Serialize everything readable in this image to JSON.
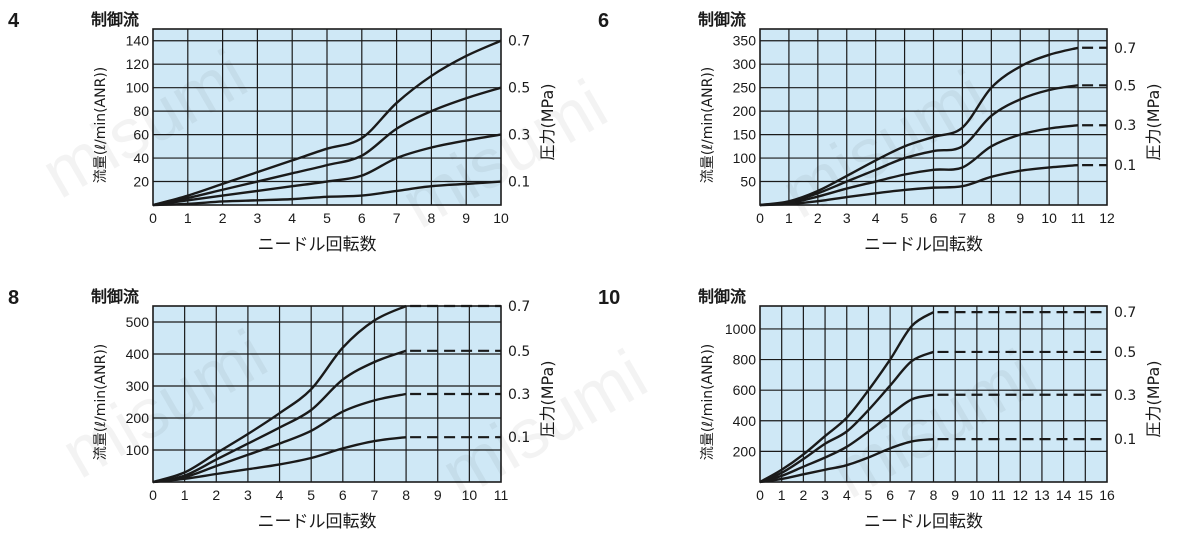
{
  "watermark": "misumi",
  "chart_data": [
    {
      "type": "line",
      "panel_label": "4",
      "top_label": "制御流",
      "xlabel": "ニードル回転数",
      "ylabel": "流量(ℓ/min(ANR))",
      "right_label": "圧力(MPa)",
      "xlim": [
        0,
        10
      ],
      "ylim": [
        0,
        150
      ],
      "x_ticks": [
        0,
        1,
        2,
        3,
        4,
        5,
        6,
        7,
        8,
        9,
        10
      ],
      "y_ticks": [
        20,
        40,
        60,
        80,
        100,
        120,
        140
      ],
      "series": [
        {
          "name": "0.7",
          "points": [
            [
              0,
              0
            ],
            [
              1,
              8
            ],
            [
              2,
              18
            ],
            [
              3,
              28
            ],
            [
              4,
              38
            ],
            [
              5,
              48
            ],
            [
              6,
              57
            ],
            [
              7,
              87
            ],
            [
              8,
              110
            ],
            [
              9,
              127
            ],
            [
              10,
              140
            ]
          ],
          "dashed_from": null
        },
        {
          "name": "0.5",
          "points": [
            [
              0,
              0
            ],
            [
              1,
              6
            ],
            [
              2,
              13
            ],
            [
              3,
              20
            ],
            [
              4,
              27
            ],
            [
              5,
              34
            ],
            [
              6,
              42
            ],
            [
              7,
              65
            ],
            [
              8,
              80
            ],
            [
              9,
              91
            ],
            [
              10,
              100
            ]
          ],
          "dashed_from": null
        },
        {
          "name": "0.3",
          "points": [
            [
              0,
              0
            ],
            [
              1,
              4
            ],
            [
              2,
              8
            ],
            [
              3,
              12
            ],
            [
              4,
              16
            ],
            [
              5,
              20
            ],
            [
              6,
              25
            ],
            [
              7,
              40
            ],
            [
              8,
              49
            ],
            [
              9,
              55
            ],
            [
              10,
              60
            ]
          ],
          "dashed_from": null
        },
        {
          "name": "0.1",
          "points": [
            [
              0,
              0
            ],
            [
              1,
              1
            ],
            [
              2,
              3
            ],
            [
              3,
              4
            ],
            [
              4,
              5
            ],
            [
              5,
              7
            ],
            [
              6,
              8
            ],
            [
              7,
              12
            ],
            [
              8,
              16
            ],
            [
              9,
              18
            ],
            [
              10,
              20
            ]
          ],
          "dashed_from": null
        }
      ]
    },
    {
      "type": "line",
      "panel_label": "6",
      "top_label": "制御流",
      "xlabel": "ニードル回転数",
      "ylabel": "流量(ℓ/min(ANR))",
      "right_label": "圧力(MPa)",
      "xlim": [
        0,
        12
      ],
      "ylim": [
        0,
        375
      ],
      "x_ticks": [
        0,
        1,
        2,
        3,
        4,
        5,
        6,
        7,
        8,
        9,
        10,
        11,
        12
      ],
      "y_ticks": [
        50,
        100,
        150,
        200,
        250,
        300,
        350
      ],
      "series": [
        {
          "name": "0.7",
          "points": [
            [
              0,
              0
            ],
            [
              1,
              8
            ],
            [
              2,
              30
            ],
            [
              3,
              62
            ],
            [
              4,
              95
            ],
            [
              5,
              125
            ],
            [
              6,
              145
            ],
            [
              7,
              165
            ],
            [
              8,
              250
            ],
            [
              9,
              295
            ],
            [
              10,
              320
            ],
            [
              11,
              335
            ]
          ],
          "dashed_from": 11
        },
        {
          "name": "0.5",
          "points": [
            [
              0,
              0
            ],
            [
              1,
              6
            ],
            [
              2,
              25
            ],
            [
              3,
              50
            ],
            [
              4,
              75
            ],
            [
              5,
              100
            ],
            [
              6,
              115
            ],
            [
              7,
              125
            ],
            [
              8,
              190
            ],
            [
              9,
              225
            ],
            [
              10,
              245
            ],
            [
              11,
              255
            ]
          ],
          "dashed_from": 11
        },
        {
          "name": "0.3",
          "points": [
            [
              0,
              0
            ],
            [
              1,
              4
            ],
            [
              2,
              18
            ],
            [
              3,
              35
            ],
            [
              4,
              50
            ],
            [
              5,
              65
            ],
            [
              6,
              75
            ],
            [
              7,
              80
            ],
            [
              8,
              125
            ],
            [
              9,
              150
            ],
            [
              10,
              163
            ],
            [
              11,
              170
            ]
          ],
          "dashed_from": 11
        },
        {
          "name": "0.1",
          "points": [
            [
              0,
              0
            ],
            [
              1,
              2
            ],
            [
              2,
              8
            ],
            [
              3,
              17
            ],
            [
              4,
              25
            ],
            [
              5,
              32
            ],
            [
              6,
              37
            ],
            [
              7,
              40
            ],
            [
              8,
              60
            ],
            [
              9,
              73
            ],
            [
              10,
              80
            ],
            [
              11,
              85
            ]
          ],
          "dashed_from": 11
        }
      ]
    },
    {
      "type": "line",
      "panel_label": "8",
      "top_label": "制御流",
      "xlabel": "ニードル回転数",
      "ylabel": "流量(ℓ/min(ANR))",
      "right_label": "圧力(MPa)",
      "xlim": [
        0,
        11
      ],
      "ylim": [
        0,
        550
      ],
      "x_ticks": [
        0,
        1,
        2,
        3,
        4,
        5,
        6,
        7,
        8,
        9,
        10,
        11
      ],
      "y_ticks": [
        100,
        200,
        300,
        400,
        500
      ],
      "series": [
        {
          "name": "0.7",
          "points": [
            [
              0,
              0
            ],
            [
              1,
              30
            ],
            [
              2,
              90
            ],
            [
              3,
              150
            ],
            [
              4,
              215
            ],
            [
              5,
              290
            ],
            [
              6,
              420
            ],
            [
              7,
              505
            ],
            [
              8,
              550
            ]
          ],
          "dashed_from": 8
        },
        {
          "name": "0.5",
          "points": [
            [
              0,
              0
            ],
            [
              1,
              20
            ],
            [
              2,
              70
            ],
            [
              3,
              120
            ],
            [
              4,
              170
            ],
            [
              5,
              225
            ],
            [
              6,
              320
            ],
            [
              7,
              375
            ],
            [
              8,
              410
            ]
          ],
          "dashed_from": 8
        },
        {
          "name": "0.3",
          "points": [
            [
              0,
              0
            ],
            [
              1,
              15
            ],
            [
              2,
              50
            ],
            [
              3,
              85
            ],
            [
              4,
              120
            ],
            [
              5,
              160
            ],
            [
              6,
              220
            ],
            [
              7,
              255
            ],
            [
              8,
              275
            ]
          ],
          "dashed_from": 8
        },
        {
          "name": "0.1",
          "points": [
            [
              0,
              0
            ],
            [
              1,
              10
            ],
            [
              2,
              25
            ],
            [
              3,
              40
            ],
            [
              4,
              55
            ],
            [
              5,
              75
            ],
            [
              6,
              105
            ],
            [
              7,
              128
            ],
            [
              8,
              140
            ]
          ],
          "dashed_from": 8
        }
      ]
    },
    {
      "type": "line",
      "panel_label": "10",
      "top_label": "制御流",
      "xlabel": "ニードル回転数",
      "ylabel": "流量(ℓ/min(ANR))",
      "right_label": "圧力(MPa)",
      "xlim": [
        0,
        16
      ],
      "ylim": [
        0,
        1150
      ],
      "x_ticks": [
        0,
        1,
        2,
        3,
        4,
        5,
        6,
        7,
        8,
        9,
        10,
        11,
        12,
        13,
        14,
        15,
        16
      ],
      "y_ticks": [
        200,
        400,
        600,
        800,
        1000
      ],
      "series": [
        {
          "name": "0.7",
          "points": [
            [
              0,
              0
            ],
            [
              1,
              80
            ],
            [
              2,
              180
            ],
            [
              3,
              300
            ],
            [
              4,
              420
            ],
            [
              5,
              600
            ],
            [
              6,
              800
            ],
            [
              7,
              1020
            ],
            [
              8,
              1110
            ]
          ],
          "dashed_from": 8
        },
        {
          "name": "0.5",
          "points": [
            [
              0,
              0
            ],
            [
              1,
              60
            ],
            [
              2,
              150
            ],
            [
              3,
              250
            ],
            [
              4,
              330
            ],
            [
              5,
              470
            ],
            [
              6,
              630
            ],
            [
              7,
              790
            ],
            [
              8,
              850
            ]
          ],
          "dashed_from": 8
        },
        {
          "name": "0.3",
          "points": [
            [
              0,
              0
            ],
            [
              1,
              40
            ],
            [
              2,
              100
            ],
            [
              3,
              160
            ],
            [
              4,
              230
            ],
            [
              5,
              330
            ],
            [
              6,
              440
            ],
            [
              7,
              540
            ],
            [
              8,
              570
            ]
          ],
          "dashed_from": 8
        },
        {
          "name": "0.1",
          "points": [
            [
              0,
              0
            ],
            [
              1,
              20
            ],
            [
              2,
              50
            ],
            [
              3,
              80
            ],
            [
              4,
              110
            ],
            [
              5,
              160
            ],
            [
              6,
              220
            ],
            [
              7,
              265
            ],
            [
              8,
              280
            ]
          ],
          "dashed_from": 8
        }
      ]
    }
  ]
}
